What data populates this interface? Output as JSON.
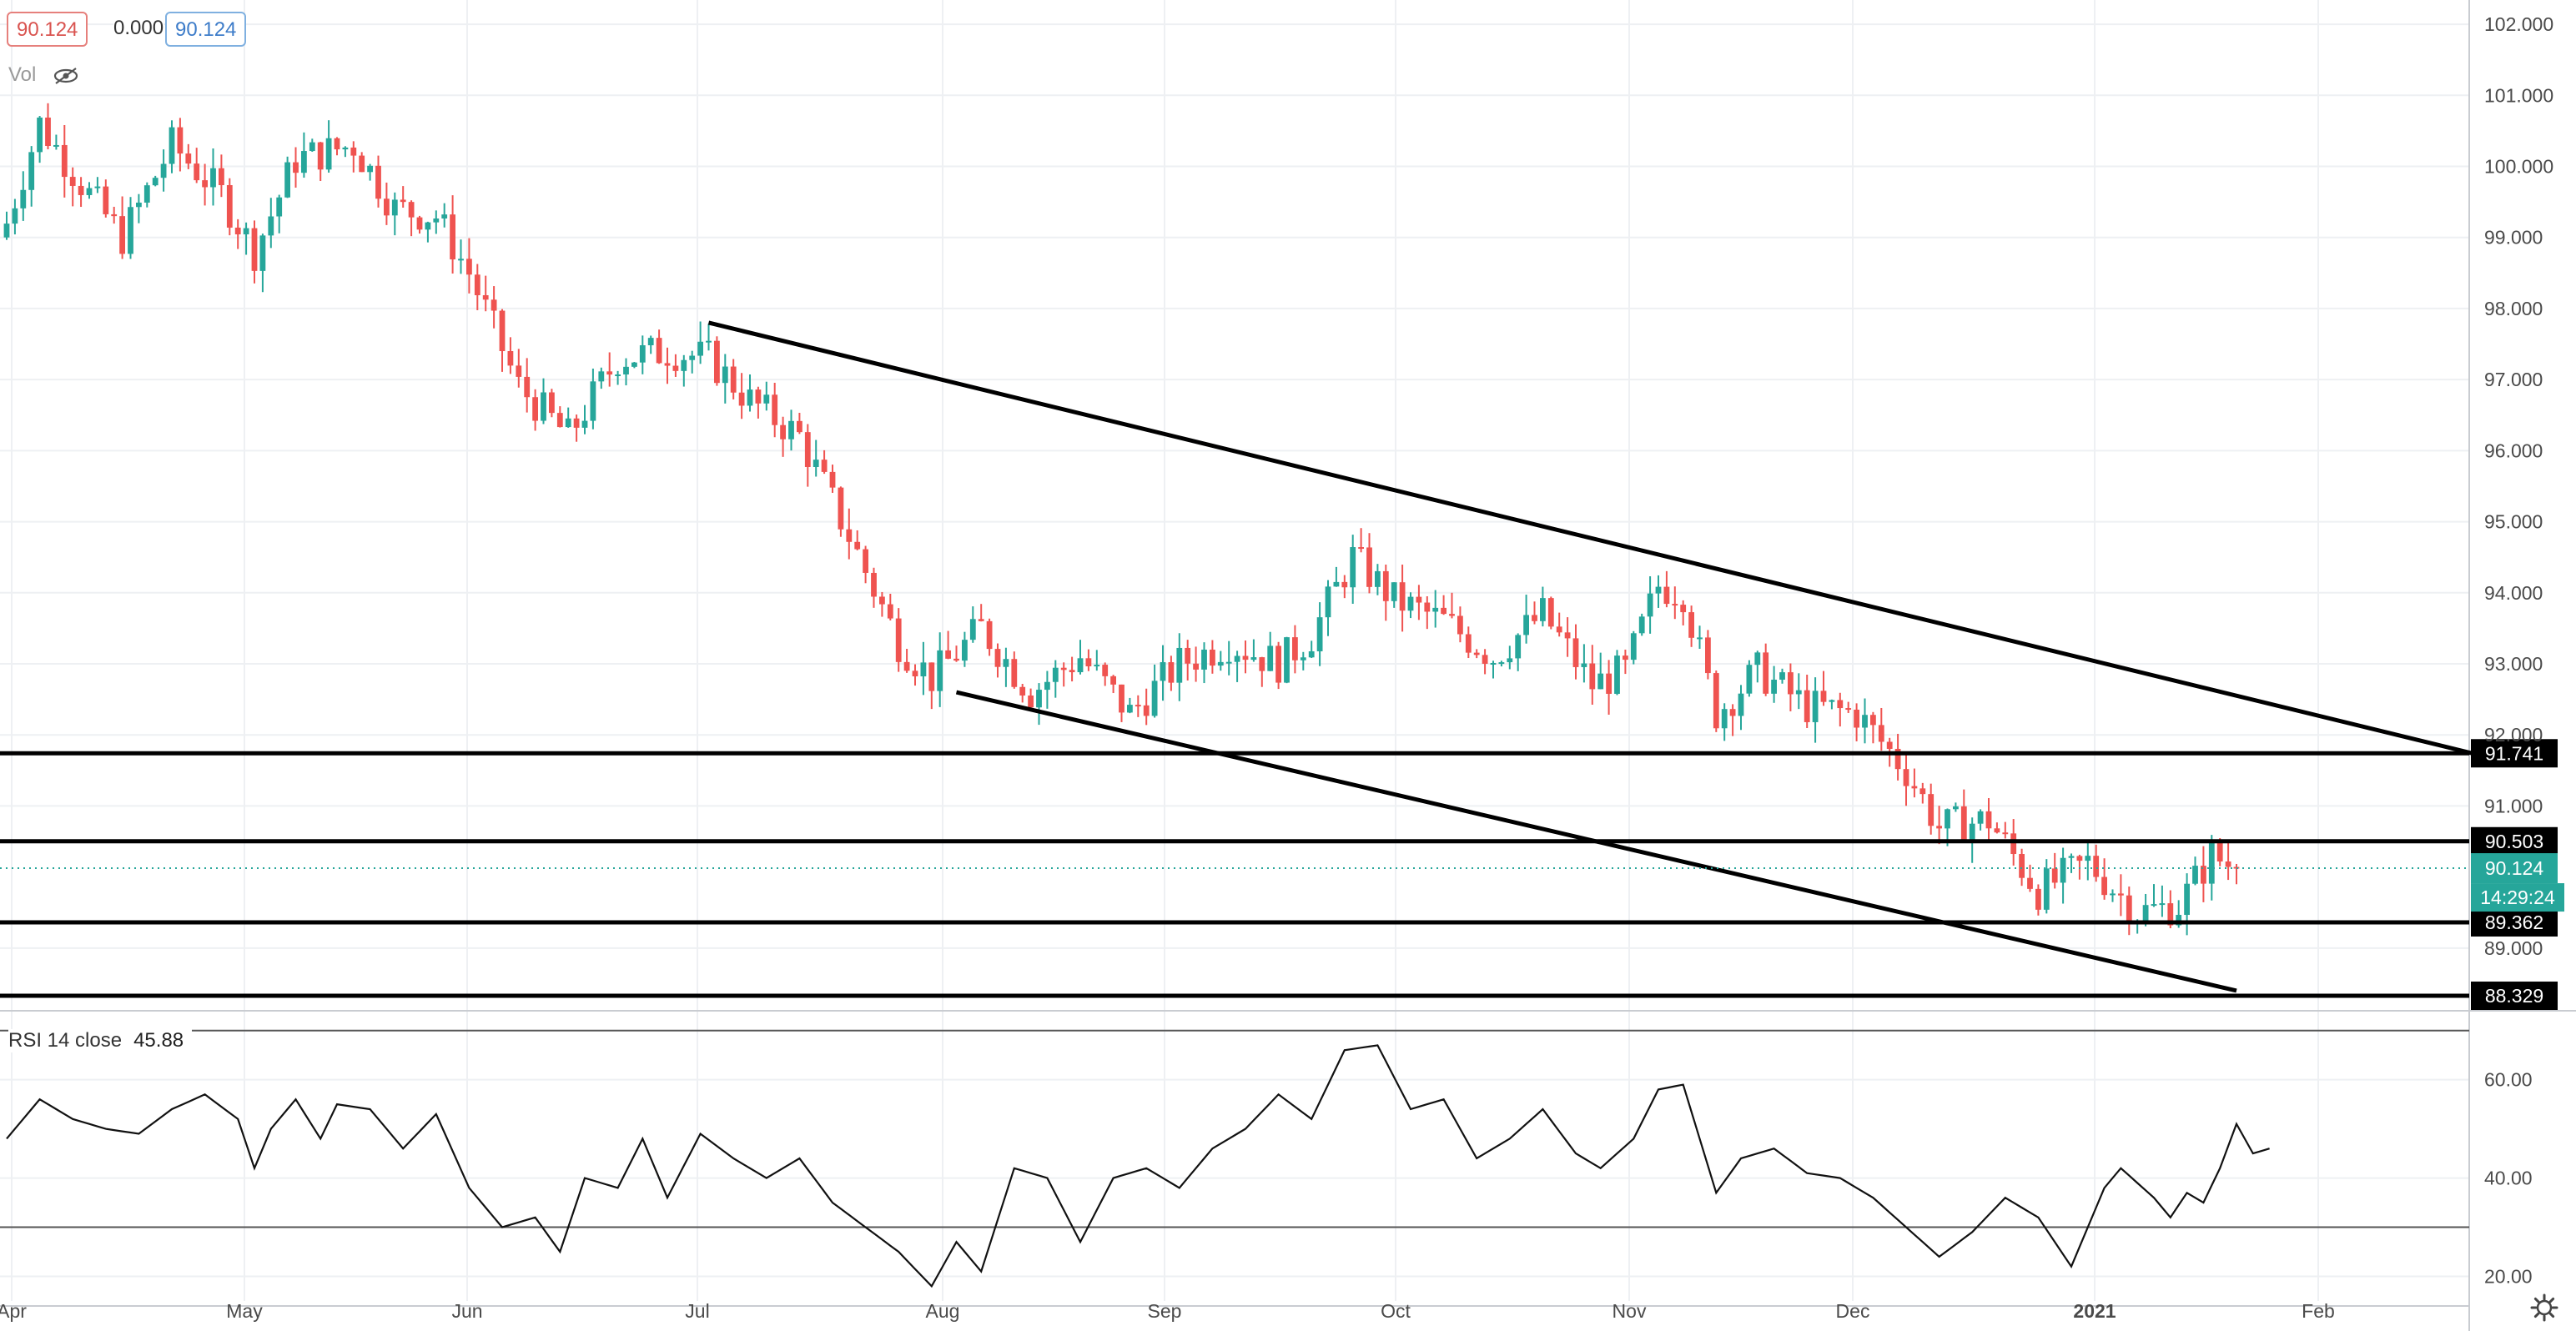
{
  "legend": {
    "open": "90.124",
    "change": "0.000",
    "last": "90.124",
    "vol_label": "Vol"
  },
  "rsi": {
    "label": "RSI 14 close",
    "value": "45.88"
  },
  "colors": {
    "up": "#26a69a",
    "down": "#ef5350",
    "line": "#000000",
    "grid": "#eef0f3"
  },
  "chart_data": [
    {
      "type": "candlestick",
      "x_ticks": [
        "Apr",
        "May",
        "Jun",
        "Jul",
        "Aug",
        "Sep",
        "Oct",
        "Nov",
        "Dec",
        "2021",
        "Feb"
      ],
      "y_ticks": [
        "89.000",
        "91.000",
        "92.000",
        "93.000",
        "94.000",
        "95.000",
        "96.000",
        "97.000",
        "98.000",
        "99.000",
        "100.000",
        "101.000",
        "102.000"
      ],
      "ylim": [
        88.2,
        102.4
      ],
      "anchors": [
        {
          "i": 0,
          "c": 99.2
        },
        {
          "i": 4,
          "c": 100.6
        },
        {
          "i": 10,
          "c": 99.6
        },
        {
          "i": 14,
          "c": 99.0
        },
        {
          "i": 20,
          "c": 100.3
        },
        {
          "i": 26,
          "c": 99.6
        },
        {
          "i": 30,
          "c": 98.8
        },
        {
          "i": 35,
          "c": 100.1
        },
        {
          "i": 42,
          "c": 100.3
        },
        {
          "i": 47,
          "c": 99.4
        },
        {
          "i": 52,
          "c": 99.3
        },
        {
          "i": 56,
          "c": 98.5
        },
        {
          "i": 62,
          "c": 96.9
        },
        {
          "i": 68,
          "c": 96.2
        },
        {
          "i": 74,
          "c": 97.3
        },
        {
          "i": 80,
          "c": 97.4
        },
        {
          "i": 85,
          "c": 97.3
        },
        {
          "i": 90,
          "c": 96.7
        },
        {
          "i": 96,
          "c": 96.2
        },
        {
          "i": 102,
          "c": 94.8
        },
        {
          "i": 108,
          "c": 93.3
        },
        {
          "i": 112,
          "c": 92.8
        },
        {
          "i": 118,
          "c": 93.5
        },
        {
          "i": 124,
          "c": 92.6
        },
        {
          "i": 130,
          "c": 93.1
        },
        {
          "i": 136,
          "c": 92.3
        },
        {
          "i": 142,
          "c": 93.0
        },
        {
          "i": 148,
          "c": 93.3
        },
        {
          "i": 154,
          "c": 93.0
        },
        {
          "i": 158,
          "c": 93.4
        },
        {
          "i": 163,
          "c": 94.5
        },
        {
          "i": 168,
          "c": 93.9
        },
        {
          "i": 174,
          "c": 93.6
        },
        {
          "i": 180,
          "c": 93.1
        },
        {
          "i": 186,
          "c": 93.7
        },
        {
          "i": 192,
          "c": 92.7
        },
        {
          "i": 196,
          "c": 92.9
        },
        {
          "i": 200,
          "c": 94.1
        },
        {
          "i": 203,
          "c": 94.0
        },
        {
          "i": 207,
          "c": 92.3
        },
        {
          "i": 212,
          "c": 92.9
        },
        {
          "i": 218,
          "c": 92.4
        },
        {
          "i": 224,
          "c": 92.3
        },
        {
          "i": 230,
          "c": 91.5
        },
        {
          "i": 234,
          "c": 90.7
        },
        {
          "i": 240,
          "c": 90.8
        },
        {
          "i": 246,
          "c": 89.8
        },
        {
          "i": 252,
          "c": 90.2
        },
        {
          "i": 258,
          "c": 89.5
        },
        {
          "i": 263,
          "c": 89.6
        },
        {
          "i": 267,
          "c": 90.3
        },
        {
          "i": 270,
          "c": 90.124
        }
      ],
      "x_last_index": 270,
      "levels": [
        {
          "value": 91.741,
          "label": "91.741"
        },
        {
          "value": 90.503,
          "label": "90.503"
        },
        {
          "value": 89.362,
          "label": "89.362"
        },
        {
          "value": 88.329,
          "label": "88.329"
        }
      ],
      "trendlines": [
        {
          "from": {
            "i": 85,
            "v": 97.8
          },
          "to": {
            "i": 300,
            "v": 91.7
          }
        },
        {
          "from": {
            "i": 115,
            "v": 92.6
          },
          "to": {
            "i": 270,
            "v": 88.4
          }
        }
      ],
      "last_price": {
        "value": 90.124,
        "label": "90.124",
        "countdown": "14:29:24"
      }
    },
    {
      "type": "line",
      "y_ticks": [
        "20.00",
        "40.00",
        "60.00"
      ],
      "ylim": [
        15,
        73
      ],
      "bands": [
        30,
        70
      ],
      "anchors": [
        {
          "i": 0,
          "v": 48
        },
        {
          "i": 4,
          "v": 56
        },
        {
          "i": 8,
          "v": 52
        },
        {
          "i": 12,
          "v": 50
        },
        {
          "i": 16,
          "v": 49
        },
        {
          "i": 20,
          "v": 54
        },
        {
          "i": 24,
          "v": 57
        },
        {
          "i": 28,
          "v": 52
        },
        {
          "i": 30,
          "v": 42
        },
        {
          "i": 32,
          "v": 50
        },
        {
          "i": 35,
          "v": 56
        },
        {
          "i": 38,
          "v": 48
        },
        {
          "i": 40,
          "v": 55
        },
        {
          "i": 44,
          "v": 54
        },
        {
          "i": 48,
          "v": 46
        },
        {
          "i": 52,
          "v": 53
        },
        {
          "i": 56,
          "v": 38
        },
        {
          "i": 60,
          "v": 30
        },
        {
          "i": 64,
          "v": 32
        },
        {
          "i": 67,
          "v": 25
        },
        {
          "i": 70,
          "v": 40
        },
        {
          "i": 74,
          "v": 38
        },
        {
          "i": 77,
          "v": 48
        },
        {
          "i": 80,
          "v": 36
        },
        {
          "i": 84,
          "v": 49
        },
        {
          "i": 88,
          "v": 44
        },
        {
          "i": 92,
          "v": 40
        },
        {
          "i": 96,
          "v": 44
        },
        {
          "i": 100,
          "v": 35
        },
        {
          "i": 104,
          "v": 30
        },
        {
          "i": 108,
          "v": 25
        },
        {
          "i": 112,
          "v": 18
        },
        {
          "i": 115,
          "v": 27
        },
        {
          "i": 118,
          "v": 21
        },
        {
          "i": 122,
          "v": 42
        },
        {
          "i": 126,
          "v": 40
        },
        {
          "i": 130,
          "v": 27
        },
        {
          "i": 134,
          "v": 40
        },
        {
          "i": 138,
          "v": 42
        },
        {
          "i": 142,
          "v": 38
        },
        {
          "i": 146,
          "v": 46
        },
        {
          "i": 150,
          "v": 50
        },
        {
          "i": 154,
          "v": 57
        },
        {
          "i": 158,
          "v": 52
        },
        {
          "i": 162,
          "v": 66
        },
        {
          "i": 166,
          "v": 67
        },
        {
          "i": 170,
          "v": 54
        },
        {
          "i": 174,
          "v": 56
        },
        {
          "i": 178,
          "v": 44
        },
        {
          "i": 182,
          "v": 48
        },
        {
          "i": 186,
          "v": 54
        },
        {
          "i": 190,
          "v": 45
        },
        {
          "i": 193,
          "v": 42
        },
        {
          "i": 197,
          "v": 48
        },
        {
          "i": 200,
          "v": 58
        },
        {
          "i": 203,
          "v": 59
        },
        {
          "i": 207,
          "v": 37
        },
        {
          "i": 210,
          "v": 44
        },
        {
          "i": 214,
          "v": 46
        },
        {
          "i": 218,
          "v": 41
        },
        {
          "i": 222,
          "v": 40
        },
        {
          "i": 226,
          "v": 36
        },
        {
          "i": 230,
          "v": 30
        },
        {
          "i": 234,
          "v": 24
        },
        {
          "i": 238,
          "v": 29
        },
        {
          "i": 242,
          "v": 36
        },
        {
          "i": 246,
          "v": 32
        },
        {
          "i": 248,
          "v": 27
        },
        {
          "i": 250,
          "v": 22
        },
        {
          "i": 252,
          "v": 30
        },
        {
          "i": 254,
          "v": 38
        },
        {
          "i": 256,
          "v": 42
        },
        {
          "i": 260,
          "v": 36
        },
        {
          "i": 262,
          "v": 32
        },
        {
          "i": 264,
          "v": 37
        },
        {
          "i": 266,
          "v": 35
        },
        {
          "i": 268,
          "v": 42
        },
        {
          "i": 270,
          "v": 51
        },
        {
          "i": 272,
          "v": 45
        },
        {
          "i": 274,
          "v": 46
        }
      ]
    }
  ]
}
